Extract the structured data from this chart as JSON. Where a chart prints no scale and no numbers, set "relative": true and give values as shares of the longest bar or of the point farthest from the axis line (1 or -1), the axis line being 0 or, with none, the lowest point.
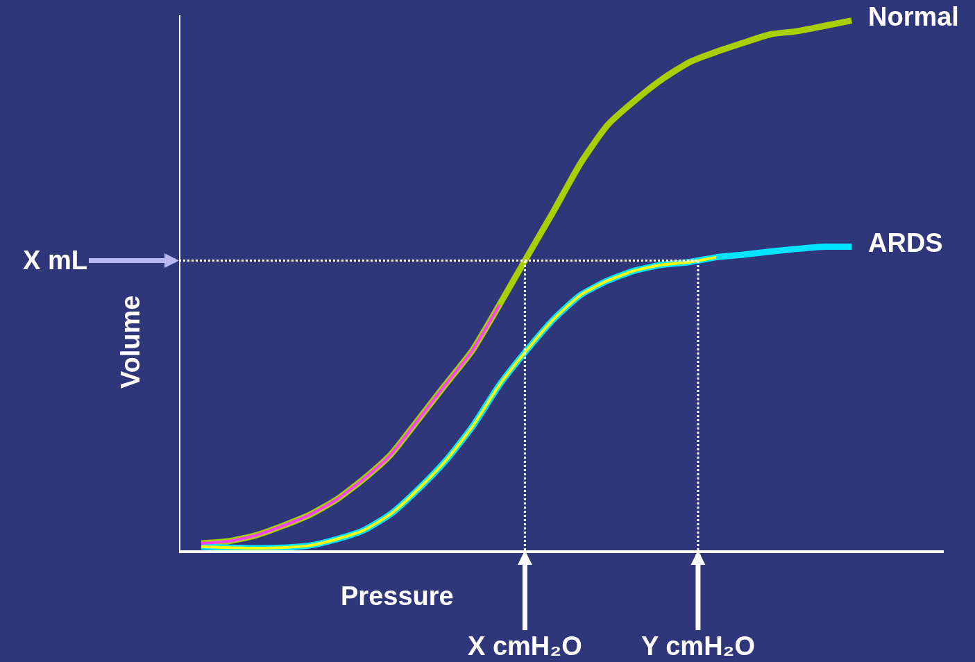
{
  "chart_data": {
    "type": "line",
    "relative": true,
    "xlabel": "Pressure",
    "ylabel": "Volume",
    "categories": [
      null,
      null,
      null,
      null,
      null,
      null,
      null,
      null,
      null,
      null,
      null,
      null,
      null,
      null,
      null,
      null,
      null,
      null,
      null,
      null,
      null,
      null,
      null,
      null,
      null
    ],
    "series": [
      {
        "name": "Normal",
        "color": "#a8d000",
        "values": [
          0.013,
          0.017,
          0.028,
          0.046,
          0.067,
          0.096,
          0.135,
          0.181,
          0.246,
          0.312,
          0.377,
          0.463,
          0.552,
          0.64,
          0.731,
          0.803,
          0.849,
          0.889,
          0.921,
          0.941,
          0.958,
          0.974,
          0.98,
          0.99,
          1.0
        ]
      },
      {
        "name": "ARDS",
        "color": "#00e5ff",
        "values": [
          0.007,
          0.005,
          0.004,
          0.005,
          0.009,
          0.021,
          0.038,
          0.069,
          0.115,
          0.168,
          0.233,
          0.312,
          0.377,
          0.436,
          0.482,
          0.509,
          0.528,
          0.539,
          0.544,
          0.553,
          0.558,
          0.564,
          0.569,
          0.573,
          0.573
        ]
      },
      {
        "color": "#ff40ff",
        "values": [
          0.013,
          0.017,
          0.028,
          0.046,
          0.067,
          0.096,
          0.135,
          0.181,
          0.246,
          0.312,
          0.377,
          0.463,
          null,
          null,
          null,
          null,
          null,
          null,
          null,
          null,
          null,
          null,
          null,
          null,
          null
        ]
      },
      {
        "color": "#ffff00",
        "values": [
          0.007,
          0.005,
          0.004,
          0.005,
          0.009,
          0.021,
          0.038,
          0.069,
          0.115,
          0.168,
          0.233,
          0.312,
          0.377,
          0.436,
          0.482,
          0.509,
          0.528,
          0.539,
          0.544,
          0.553,
          null,
          null,
          null,
          null,
          null
        ]
      }
    ],
    "ref_lines": [
      {
        "axis": "y",
        "value": 0.547,
        "label": "X mL",
        "color": "#ffffff",
        "line_style": "dotted"
      }
    ],
    "annotations": [
      "X cmH₂O",
      "Y cmH₂O"
    ],
    "grid": false,
    "legend": false,
    "marker": "none",
    "line_style": "solid"
  }
}
